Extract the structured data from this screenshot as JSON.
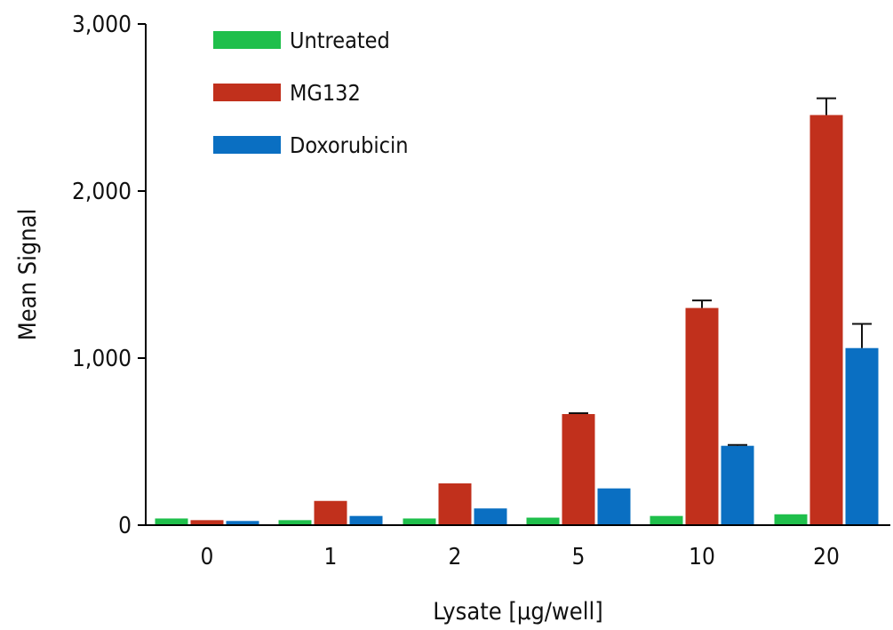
{
  "chart_data": {
    "type": "bar",
    "title": "",
    "xlabel": "Lysate [µg/well]",
    "ylabel": "Mean Signal",
    "categories": [
      "0",
      "1",
      "2",
      "5",
      "10",
      "20"
    ],
    "ylim": [
      0,
      3000
    ],
    "yticks": [
      0,
      1000,
      2000,
      3000
    ],
    "ytick_labels": [
      "0",
      "1,000",
      "2,000",
      "3,000"
    ],
    "grid": false,
    "legend_position": "top-left",
    "series": [
      {
        "name": "Untreated",
        "color": "#1fbf4b",
        "values": [
          40,
          30,
          40,
          45,
          55,
          65
        ],
        "errors": [
          0,
          0,
          0,
          0,
          0,
          0
        ]
      },
      {
        "name": "MG132",
        "color": "#c1301c",
        "values": [
          30,
          145,
          250,
          665,
          1300,
          2455
        ],
        "errors": [
          0,
          0,
          0,
          5,
          45,
          100
        ]
      },
      {
        "name": "Doxorubicin",
        "color": "#0a6fc2",
        "values": [
          25,
          55,
          100,
          220,
          475,
          1060
        ],
        "errors": [
          0,
          0,
          0,
          0,
          5,
          145
        ]
      }
    ]
  }
}
